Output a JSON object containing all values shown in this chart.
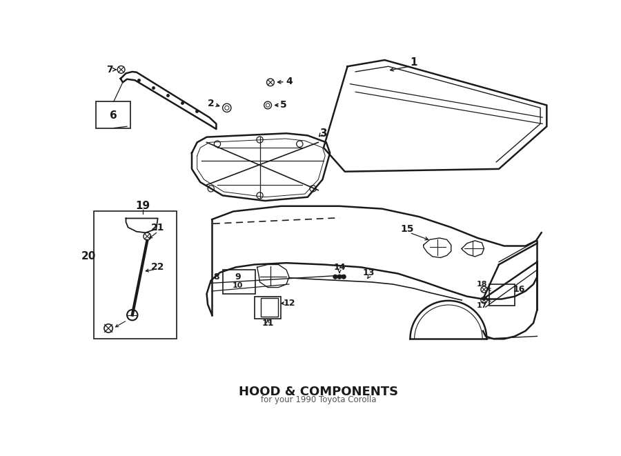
{
  "title": "HOOD & COMPONENTS",
  "subtitle": "for your 1990 Toyota Corolla",
  "bg_color": "#ffffff",
  "line_color": "#1a1a1a",
  "fig_width": 9.0,
  "fig_height": 6.61,
  "dpi": 100
}
